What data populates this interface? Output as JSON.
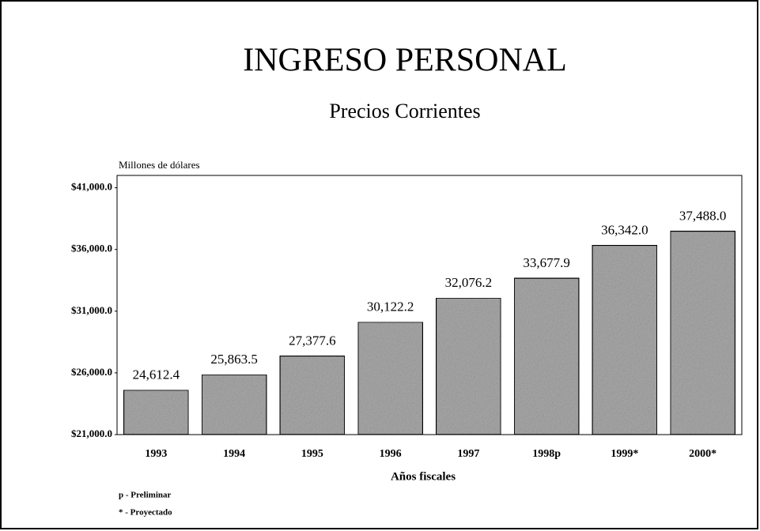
{
  "chart_data": {
    "type": "bar",
    "title": "INGRESO PERSONAL",
    "subtitle": "Precios Corrientes",
    "y_axis_label": "Millones de dólares",
    "x_axis_label": "Años fiscales",
    "notes": [
      "p - Preliminar",
      "* - Proyectado"
    ],
    "categories": [
      "1993",
      "1994",
      "1995",
      "1996",
      "1997",
      "1998p",
      "1999*",
      "2000*"
    ],
    "values": [
      24612.4,
      25863.5,
      27377.6,
      30122.2,
      32076.2,
      33677.9,
      36342.0,
      37488.0
    ],
    "value_labels": [
      "24,612.4",
      "25,863.5",
      "27,377.6",
      "30,122.2",
      "32,076.2",
      "33,677.9",
      "36,342.0",
      "37,488.0"
    ],
    "color": "#a8a8a8",
    "ylim": [
      21000,
      42000
    ],
    "yticks": [
      {
        "value": 21000,
        "label": "$21,000.0"
      },
      {
        "value": 26000,
        "label": "$26,000.0"
      },
      {
        "value": 31000,
        "label": "$31,000.0"
      },
      {
        "value": 36000,
        "label": "$36,000.0"
      },
      {
        "value": 41000,
        "label": "$41,000.0"
      }
    ]
  }
}
